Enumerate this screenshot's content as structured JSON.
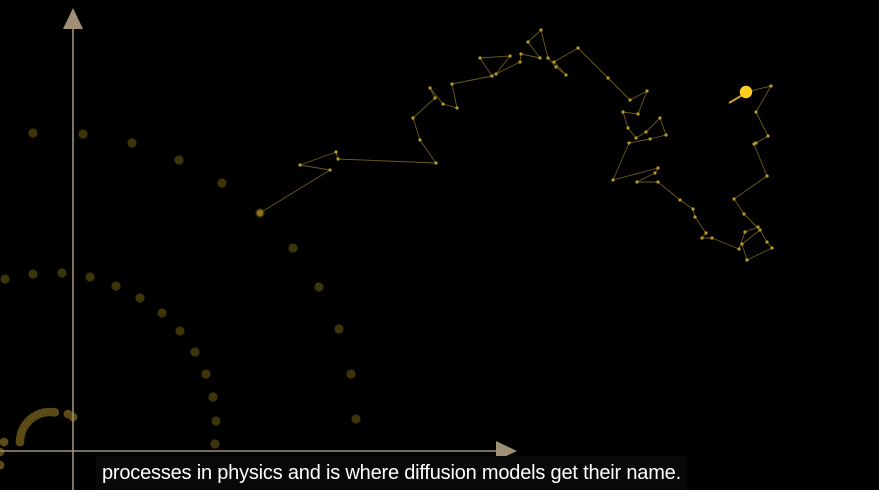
{
  "colors": {
    "background": "#000000",
    "axis": "#a08f75",
    "walk_line": "#6b5a1f",
    "walk_dot": "#b89a2a",
    "faded_dot": "#3d3409",
    "ring_dot": "#5c4b16",
    "current_particle": "#ffcc22",
    "caption_text": "#ffffff",
    "caption_bg": "#080808"
  },
  "caption": {
    "text": "processes in physics and is where diffusion models get their name."
  }
}
